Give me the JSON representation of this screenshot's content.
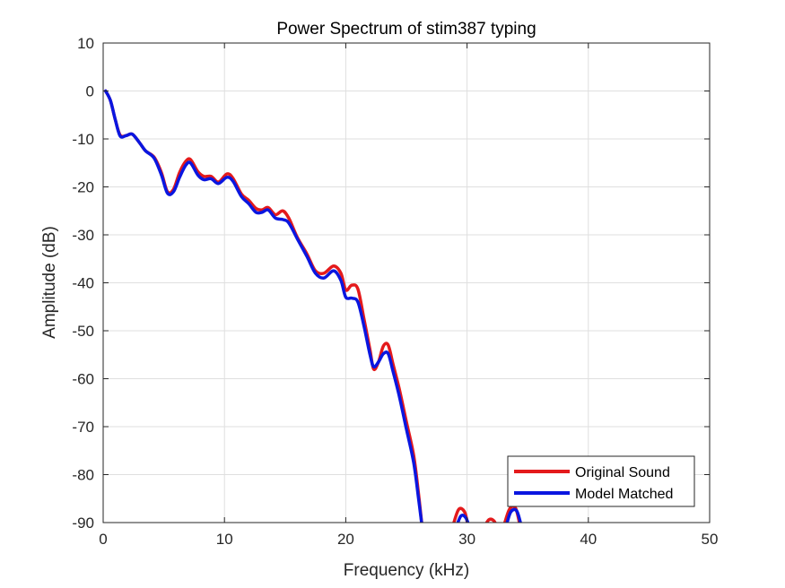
{
  "chart_data": {
    "type": "line",
    "title": "Power Spectrum of stim387 typing",
    "xlabel": "Frequency (kHz)",
    "ylabel": "Amplitude (dB)",
    "xlim": [
      0,
      50
    ],
    "ylim": [
      -90,
      10
    ],
    "xticks": [
      "0",
      "10",
      "20",
      "30",
      "40",
      "50"
    ],
    "yticks": [
      "10",
      "0",
      "-10",
      "-20",
      "-30",
      "-40",
      "-50",
      "-60",
      "-70",
      "-80",
      "-90"
    ],
    "grid": true,
    "legend_position": "bottom-right",
    "series": [
      {
        "name": "Original Sound",
        "color": "#e41a1c",
        "points": [
          [
            0.2,
            0
          ],
          [
            0.6,
            -2
          ],
          [
            1.0,
            -6
          ],
          [
            1.4,
            -9.2
          ],
          [
            1.9,
            -9.3
          ],
          [
            2.4,
            -9.0
          ],
          [
            3.0,
            -10.8
          ],
          [
            3.5,
            -12.5
          ],
          [
            4.2,
            -13.8
          ],
          [
            4.8,
            -17.0
          ],
          [
            5.3,
            -21.0
          ],
          [
            5.8,
            -20.5
          ],
          [
            6.3,
            -17.0
          ],
          [
            6.8,
            -14.7
          ],
          [
            7.2,
            -14.3
          ],
          [
            7.8,
            -16.8
          ],
          [
            8.3,
            -17.8
          ],
          [
            8.9,
            -17.8
          ],
          [
            9.5,
            -19.0
          ],
          [
            10.2,
            -17.3
          ],
          [
            10.7,
            -18.2
          ],
          [
            11.4,
            -21.5
          ],
          [
            12.0,
            -22.8
          ],
          [
            12.6,
            -24.5
          ],
          [
            13.1,
            -24.8
          ],
          [
            13.6,
            -24.3
          ],
          [
            14.2,
            -25.8
          ],
          [
            14.8,
            -25.0
          ],
          [
            15.3,
            -26.5
          ],
          [
            16.0,
            -30.5
          ],
          [
            16.8,
            -34.0
          ],
          [
            17.5,
            -37.5
          ],
          [
            18.2,
            -38.0
          ],
          [
            19.0,
            -36.5
          ],
          [
            19.6,
            -38.0
          ],
          [
            20.0,
            -41.5
          ],
          [
            20.5,
            -40.5
          ],
          [
            21.0,
            -41.3
          ],
          [
            21.5,
            -47.5
          ],
          [
            22.0,
            -54.0
          ],
          [
            22.3,
            -58.0
          ],
          [
            22.7,
            -56.5
          ],
          [
            23.1,
            -53.2
          ],
          [
            23.5,
            -53.0
          ],
          [
            23.9,
            -57.0
          ],
          [
            24.4,
            -62.0
          ],
          [
            25.0,
            -69.0
          ],
          [
            25.6,
            -76.0
          ],
          [
            26.0,
            -84.0
          ],
          [
            26.3,
            -91.0
          ]
        ],
        "fragments": [
          [
            [
              28.8,
              -91
            ],
            [
              29.3,
              -87.3
            ],
            [
              29.8,
              -87.8
            ],
            [
              30.1,
              -91
            ]
          ],
          [
            [
              31.4,
              -91
            ],
            [
              31.8,
              -89.4
            ],
            [
              32.2,
              -89.6
            ],
            [
              32.5,
              -91
            ]
          ],
          [
            [
              33.0,
              -91
            ],
            [
              33.5,
              -87.2
            ],
            [
              34.0,
              -87.0
            ],
            [
              34.4,
              -91
            ]
          ]
        ]
      },
      {
        "name": "Model Matched",
        "color": "#0a16e0",
        "points": [
          [
            0.2,
            0
          ],
          [
            0.6,
            -2
          ],
          [
            1.0,
            -6
          ],
          [
            1.4,
            -9.4
          ],
          [
            1.9,
            -9.3
          ],
          [
            2.4,
            -9.0
          ],
          [
            3.0,
            -10.8
          ],
          [
            3.5,
            -12.5
          ],
          [
            4.2,
            -14.0
          ],
          [
            4.8,
            -17.5
          ],
          [
            5.3,
            -21.3
          ],
          [
            5.8,
            -21.0
          ],
          [
            6.3,
            -18.0
          ],
          [
            6.8,
            -15.5
          ],
          [
            7.2,
            -15.0
          ],
          [
            7.8,
            -17.5
          ],
          [
            8.3,
            -18.5
          ],
          [
            8.9,
            -18.3
          ],
          [
            9.5,
            -19.3
          ],
          [
            10.2,
            -18.0
          ],
          [
            10.7,
            -18.8
          ],
          [
            11.4,
            -22.0
          ],
          [
            12.0,
            -23.5
          ],
          [
            12.6,
            -25.3
          ],
          [
            13.1,
            -25.3
          ],
          [
            13.6,
            -24.8
          ],
          [
            14.2,
            -26.5
          ],
          [
            14.8,
            -26.8
          ],
          [
            15.3,
            -27.5
          ],
          [
            16.0,
            -30.8
          ],
          [
            16.8,
            -34.5
          ],
          [
            17.5,
            -38.0
          ],
          [
            18.2,
            -39.0
          ],
          [
            19.0,
            -37.5
          ],
          [
            19.6,
            -39.5
          ],
          [
            20.0,
            -43.0
          ],
          [
            20.5,
            -43.2
          ],
          [
            21.0,
            -44.0
          ],
          [
            21.5,
            -49.0
          ],
          [
            22.0,
            -55.0
          ],
          [
            22.3,
            -57.5
          ],
          [
            22.7,
            -56.5
          ],
          [
            23.1,
            -54.8
          ],
          [
            23.5,
            -54.8
          ],
          [
            23.9,
            -58.5
          ],
          [
            24.4,
            -63.5
          ],
          [
            25.0,
            -70.5
          ],
          [
            25.6,
            -77.5
          ],
          [
            26.0,
            -85.0
          ],
          [
            26.3,
            -91.0
          ]
        ],
        "fragments": [
          [
            [
              29.1,
              -91
            ],
            [
              29.5,
              -88.6
            ],
            [
              29.9,
              -89.0
            ],
            [
              30.2,
              -91
            ]
          ],
          [
            [
              31.6,
              -91
            ],
            [
              32.0,
              -90.3
            ],
            [
              32.3,
              -90.4
            ],
            [
              32.6,
              -91
            ]
          ],
          [
            [
              33.2,
              -91
            ],
            [
              33.6,
              -87.8
            ],
            [
              34.1,
              -87.6
            ],
            [
              34.5,
              -91
            ]
          ]
        ]
      }
    ]
  }
}
